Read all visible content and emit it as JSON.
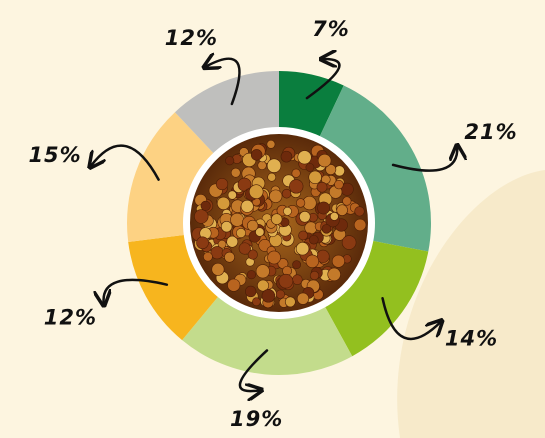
{
  "chart_data": {
    "type": "donut",
    "values": [
      7,
      21,
      14,
      19,
      12,
      15,
      12
    ],
    "value_labels": [
      "7%",
      "21%",
      "14%",
      "19%",
      "12%",
      "15%",
      "12%"
    ],
    "colors": [
      "#0a7e3e",
      "#62ae8a",
      "#93c01f",
      "#c3dc8c",
      "#f7b51e",
      "#fdd283",
      "#bfbfbd"
    ]
  }
}
